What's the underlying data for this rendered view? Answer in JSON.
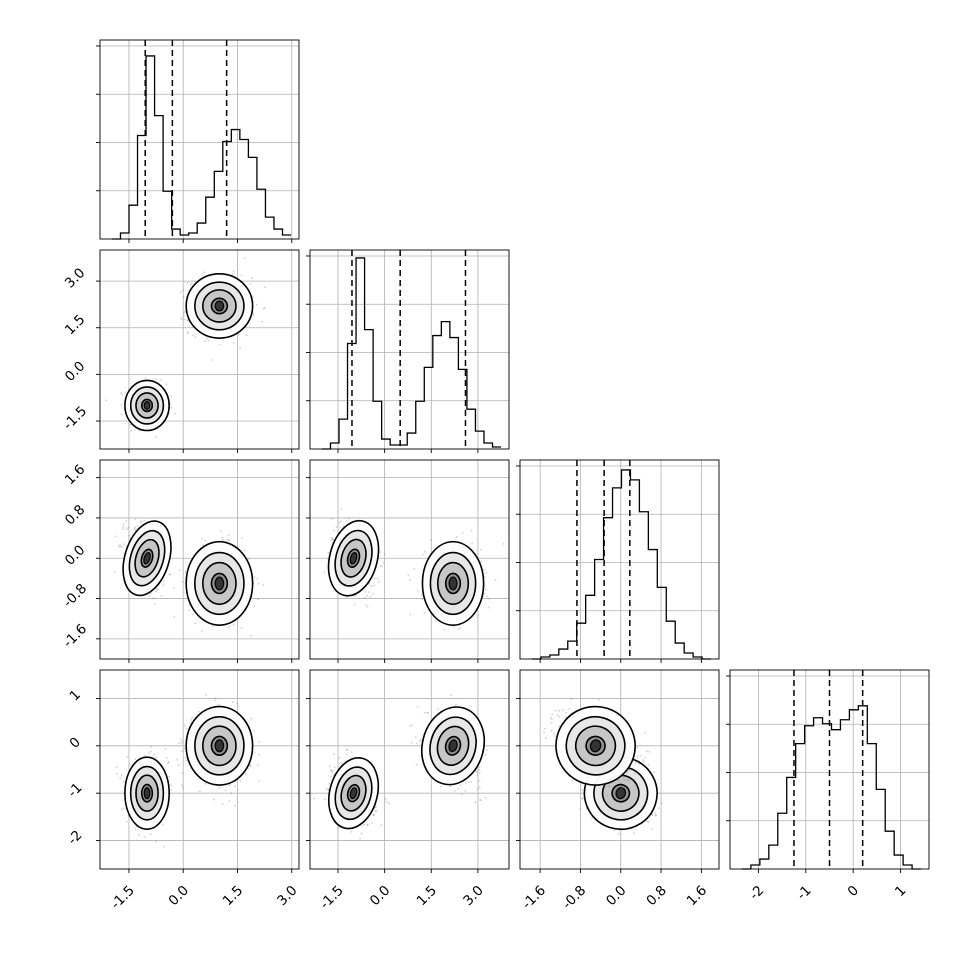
{
  "chart_data": {
    "type": "corner",
    "title": "",
    "parameters": [
      "",
      "",
      "",
      ""
    ],
    "ranges": [
      [
        -2.3,
        3.2
      ],
      [
        -2.4,
        4.0
      ],
      [
        -2.0,
        1.95
      ],
      [
        -2.6,
        1.6
      ]
    ],
    "ticks": [
      [
        -1.5,
        0.0,
        1.5,
        3.0
      ],
      [
        -1.5,
        0.0,
        1.5,
        3.0
      ],
      [
        -1.6,
        -0.8,
        0.0,
        0.8,
        1.6
      ],
      [
        -2,
        -1,
        0,
        1
      ]
    ],
    "tick_labels": [
      [
        "-1.5",
        "0.0",
        "1.5",
        "3.0"
      ],
      [
        "-1.5",
        "0.0",
        "1.5",
        "3.0"
      ],
      [
        "-1.6",
        "-0.8",
        "0.0",
        "0.8",
        "1.6"
      ],
      [
        "-2",
        "-1",
        "0",
        "1"
      ]
    ],
    "quantiles": [
      [
        -1.05,
        -0.3,
        1.2
      ],
      [
        -1.05,
        0.5,
        2.6
      ],
      [
        -0.87,
        -0.33,
        0.18
      ],
      [
        -1.25,
        -0.5,
        0.2
      ]
    ],
    "histogram_counts": [
      [
        0.0,
        0.03,
        0.17,
        0.52,
        0.92,
        0.62,
        0.24,
        0.05,
        0.02,
        0.03,
        0.08,
        0.21,
        0.34,
        0.49,
        0.55,
        0.5,
        0.41,
        0.25,
        0.11,
        0.05,
        0.02
      ],
      [
        0.0,
        0.03,
        0.15,
        0.53,
        0.96,
        0.6,
        0.24,
        0.05,
        0.02,
        0.02,
        0.08,
        0.24,
        0.41,
        0.57,
        0.64,
        0.56,
        0.4,
        0.2,
        0.09,
        0.03,
        0.01
      ],
      [
        0.0,
        0.01,
        0.02,
        0.05,
        0.09,
        0.18,
        0.32,
        0.5,
        0.71,
        0.86,
        0.95,
        0.9,
        0.74,
        0.55,
        0.36,
        0.19,
        0.08,
        0.03,
        0.01,
        0.0
      ],
      [
        0.0,
        0.02,
        0.05,
        0.12,
        0.28,
        0.46,
        0.63,
        0.72,
        0.76,
        0.73,
        0.7,
        0.75,
        0.8,
        0.82,
        0.63,
        0.4,
        0.19,
        0.07,
        0.02,
        0.0
      ]
    ],
    "modes": [
      {
        "weight": 0.45,
        "mean": [
          -1.0,
          -1.0,
          0.0,
          -1.0
        ],
        "sd": [
          0.28,
          0.35,
          0.33,
          0.33
        ]
      },
      {
        "weight": 0.55,
        "mean": [
          1.0,
          2.2,
          -0.5,
          0.0
        ],
        "sd": [
          0.42,
          0.45,
          0.36,
          0.36
        ]
      }
    ],
    "grid": true,
    "legend": "none"
  }
}
